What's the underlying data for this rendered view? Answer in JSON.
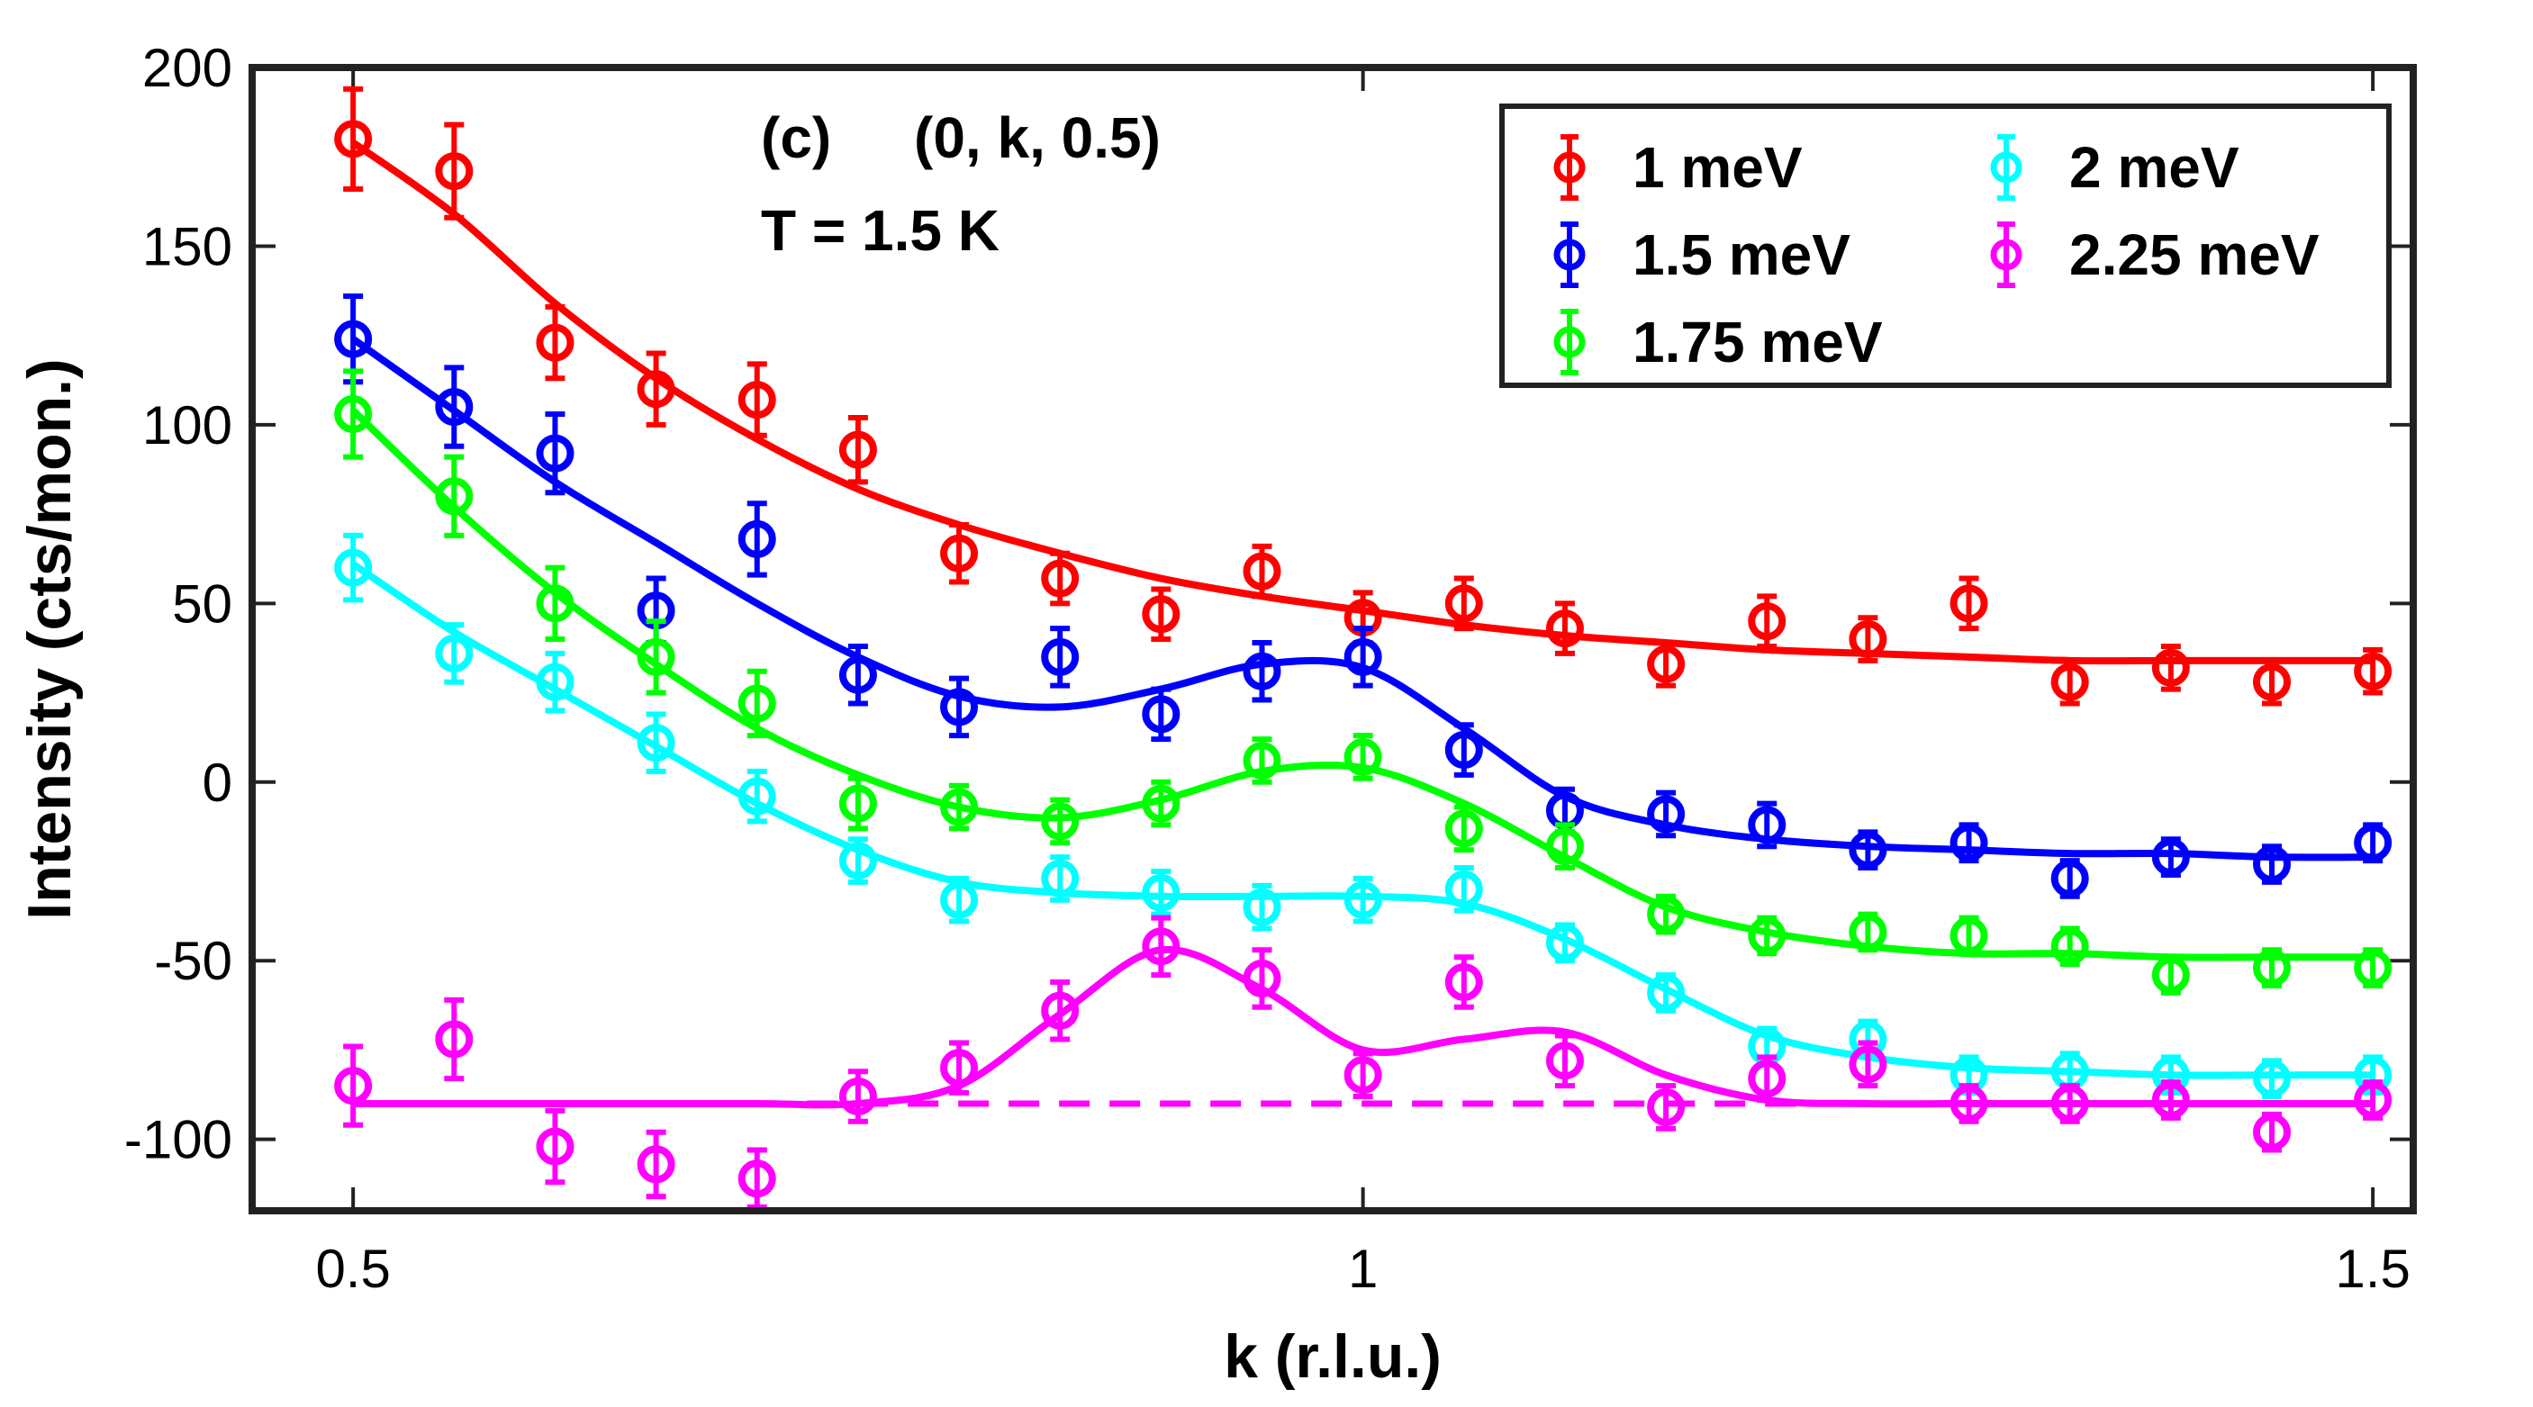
{
  "chart_data": {
    "type": "scatter",
    "panel_label": "(c)",
    "q_label": "(0, k, 0.5)",
    "temperature_label": "T = 1.5 K",
    "xlabel": "k (r.l.u.)",
    "ylabel": "Intensity (cts/mon.)",
    "xlim": [
      0.45,
      1.52
    ],
    "ylim": [
      -120,
      200
    ],
    "xticks": [
      0.5,
      1,
      1.5
    ],
    "xtick_labels": [
      "0.5",
      "1",
      "1.5"
    ],
    "yticks": [
      -100,
      -50,
      0,
      50,
      100,
      150,
      200
    ],
    "ytick_labels": [
      "-100",
      "-50",
      "0",
      "50",
      "100",
      "150",
      "200"
    ],
    "x": [
      0.5,
      0.55,
      0.6,
      0.65,
      0.7,
      0.75,
      0.8,
      0.85,
      0.9,
      0.95,
      1.0,
      1.05,
      1.1,
      1.15,
      1.2,
      1.25,
      1.3,
      1.35,
      1.4,
      1.45,
      1.5
    ],
    "series": [
      {
        "name": "1 meV",
        "color": "#ff0000",
        "y": [
          180,
          171,
          123,
          110,
          107,
          93,
          64,
          57,
          47,
          59,
          46,
          50,
          43,
          33,
          45,
          40,
          50,
          28,
          32,
          28,
          31
        ],
        "err": [
          14,
          13,
          10,
          10,
          10,
          9,
          8,
          7,
          7,
          7,
          7,
          7,
          7,
          6,
          7,
          6,
          7,
          6,
          6,
          6,
          6
        ],
        "fit": [
          179,
          159,
          134,
          113,
          96,
          82,
          72,
          64,
          57,
          52,
          48,
          44,
          41,
          39,
          37,
          36,
          35,
          34,
          34,
          34,
          34
        ]
      },
      {
        "name": "1.5 meV",
        "color": "#0000ff",
        "y": [
          124,
          105,
          92,
          48,
          68,
          30,
          21,
          35,
          19,
          31,
          35,
          9,
          -8,
          -9,
          -12,
          -19,
          -17,
          -27,
          -21,
          -23,
          -17
        ],
        "err": [
          12,
          11,
          11,
          9,
          10,
          8,
          8,
          8,
          7,
          8,
          8,
          7,
          6,
          6,
          6,
          5,
          5,
          5,
          5,
          5,
          5
        ],
        "fit": [
          124,
          104,
          84,
          67,
          50,
          35,
          24,
          21,
          26,
          33,
          32,
          15,
          -4,
          -12,
          -16,
          -18,
          -19,
          -20,
          -20,
          -21,
          -21
        ]
      },
      {
        "name": "1.75 meV",
        "color": "#00ff00",
        "y": [
          103,
          80,
          50,
          35,
          22,
          -6,
          -7,
          -11,
          -6,
          6,
          7,
          -13,
          -18,
          -37,
          -43,
          -42,
          -43,
          -46,
          -54,
          -52,
          -52
        ],
        "err": [
          12,
          11,
          10,
          10,
          9,
          7,
          6,
          6,
          6,
          6,
          6,
          6,
          6,
          5,
          5,
          5,
          5,
          5,
          5,
          5,
          5
        ],
        "fit": [
          104,
          77,
          53,
          33,
          15,
          2,
          -7,
          -10,
          -5,
          3,
          4,
          -6,
          -21,
          -35,
          -42,
          -46,
          -48,
          -48,
          -49,
          -49,
          -49
        ]
      },
      {
        "name": "2 meV",
        "color": "#00ffff",
        "y": [
          60,
          36,
          28,
          11,
          -4,
          -22,
          -33,
          -27,
          -31,
          -35,
          -33,
          -30,
          -45,
          -59,
          -74,
          -72,
          -82,
          -81,
          -82,
          -83,
          -82
        ],
        "err": [
          9,
          8,
          8,
          8,
          7,
          6,
          6,
          6,
          6,
          6,
          6,
          6,
          5,
          5,
          5,
          5,
          5,
          5,
          5,
          5,
          5
        ],
        "fit": [
          61,
          42,
          26,
          10,
          -6,
          -19,
          -28,
          -31,
          -32,
          -32,
          -32,
          -34,
          -44,
          -58,
          -71,
          -77,
          -80,
          -81,
          -82,
          -82,
          -82
        ]
      },
      {
        "name": "2.25 meV",
        "color": "#ff00ff",
        "y": [
          -85,
          -72,
          -102,
          -107,
          -111,
          -88,
          -80,
          -64,
          -46,
          -55,
          -82,
          -56,
          -78,
          -91,
          -83,
          -79,
          -90,
          -90,
          -89,
          -98,
          -89
        ],
        "err": [
          11,
          11,
          10,
          9,
          8,
          7,
          7,
          8,
          8,
          8,
          6,
          7,
          7,
          6,
          6,
          6,
          5,
          5,
          5,
          5,
          5
        ],
        "fit": [
          -90,
          -90,
          -90,
          -90,
          -90,
          -90,
          -85,
          -65,
          -47,
          -58,
          -75,
          -72,
          -70,
          -82,
          -89,
          -90,
          -90,
          -90,
          -90,
          -90,
          -90
        ],
        "baseline": -90
      }
    ],
    "legend_position": "top-right"
  }
}
